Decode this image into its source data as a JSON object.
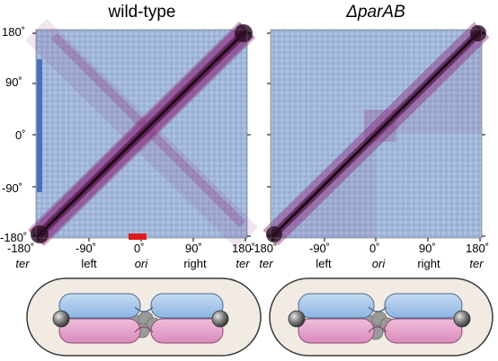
{
  "panels": [
    {
      "title": "wild-type",
      "y_ticks": [
        "180˚",
        "90˚",
        "0˚",
        "-90˚",
        "-180˚"
      ],
      "x_ticks": [
        "-180˚",
        "-90˚",
        "0˚",
        "90˚",
        "180˚"
      ],
      "x_regions": [
        "ter",
        "left",
        "ori",
        "right",
        "ter"
      ],
      "matrix_colors": {
        "background": "#9db3d8",
        "diagonal": "#1a0b14",
        "contact": "#8b2f7c"
      }
    },
    {
      "title": "ΔparAB",
      "y_ticks": [],
      "x_ticks": [
        "-180˚",
        "-90˚",
        "0˚",
        "90˚",
        "180˚"
      ],
      "x_regions": [
        "ter",
        "left",
        "ori",
        "right",
        "ter"
      ],
      "matrix_colors": {
        "background": "#9db3d8",
        "diagonal": "#1a0b14",
        "contact": "#8b2f7c"
      }
    }
  ],
  "highlight_colors": {
    "y_bar": "#4a6fc0",
    "x_bar": "#e01b1b"
  },
  "cell_colors": {
    "membrane": "#3a3a3a",
    "cytoplasm": "#f1ebe3",
    "arm_blue": "#a9c7ea",
    "arm_pink": "#e7a6cc",
    "chromosome_edge": "#4a6a8c",
    "condensate": "#9a9a9a",
    "sphere": "#6a6a6a"
  }
}
